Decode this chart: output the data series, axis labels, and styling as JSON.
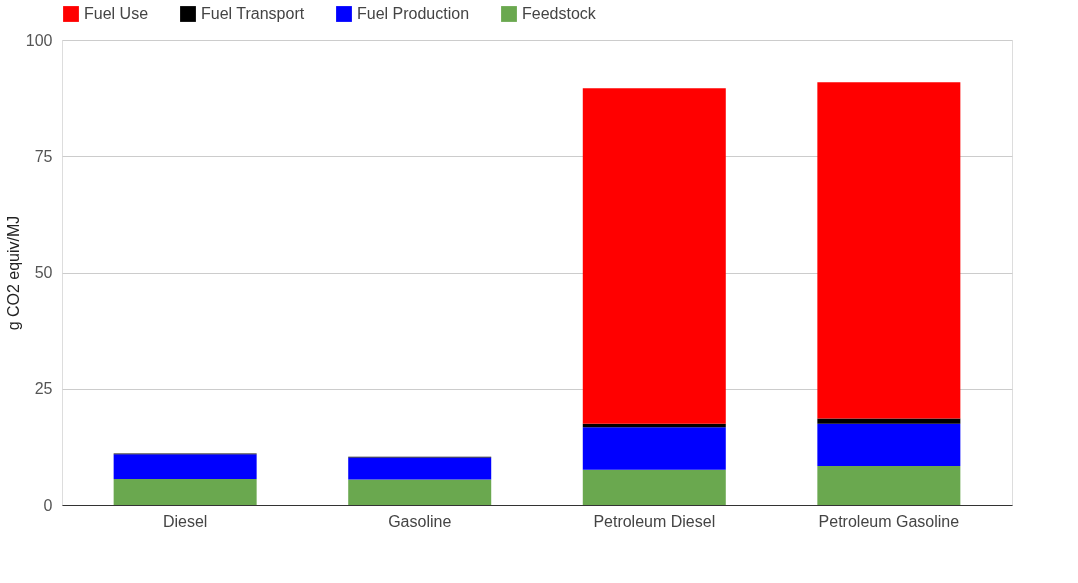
{
  "chart_data": {
    "type": "bar",
    "stacked": true,
    "ylabel": "g CO2 equiv/MJ",
    "categories": [
      "Diesel",
      "Gasoline",
      "Petroleum Diesel",
      "Petroleum Gasoline"
    ],
    "series": [
      {
        "name": "Feedstock",
        "color": "#6aa84f",
        "values": [
          5.6,
          5.5,
          7.6,
          8.4
        ]
      },
      {
        "name": "Fuel Production",
        "color": "#0000ff",
        "values": [
          5.3,
          4.7,
          9.1,
          9.1
        ]
      },
      {
        "name": "Fuel Transport",
        "color": "#000000",
        "values": [
          0.2,
          0.2,
          0.8,
          1.1
        ]
      },
      {
        "name": "Fuel Use",
        "color": "#ff0000",
        "values": [
          0,
          0,
          72.1,
          72.3
        ]
      }
    ],
    "ylim": [
      0,
      100
    ],
    "yticks": [
      0,
      25,
      50,
      75,
      100
    ],
    "grid": "y",
    "legend": "top"
  }
}
